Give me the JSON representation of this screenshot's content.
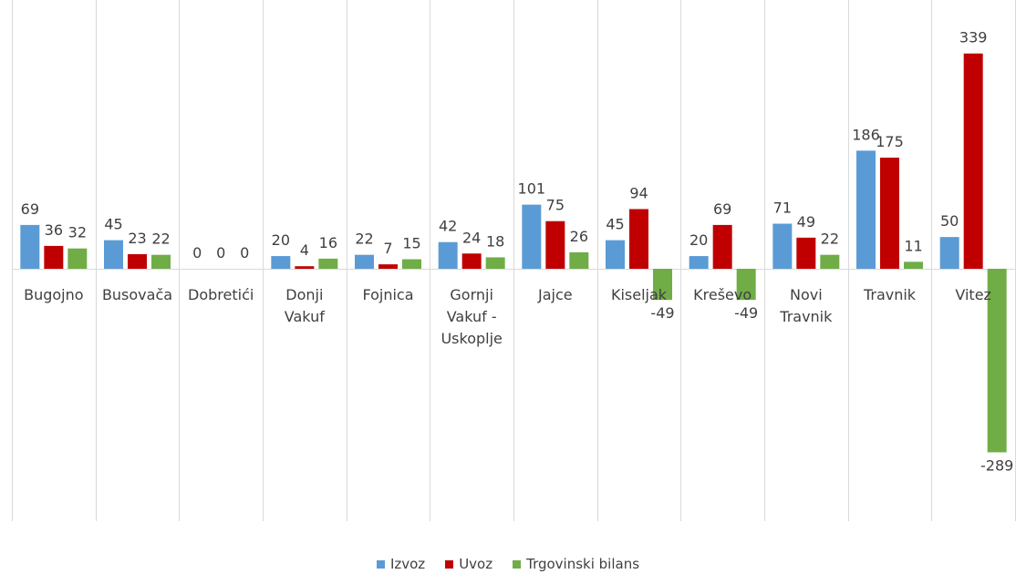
{
  "chart_data": {
    "type": "bar",
    "categories": [
      [
        "Bugojno"
      ],
      [
        "Busovača"
      ],
      [
        "Dobretići"
      ],
      [
        "Donji",
        "Vakuf"
      ],
      [
        "Fojnica"
      ],
      [
        "Gornji",
        "Vakuf -",
        "Uskoplje"
      ],
      [
        "Jajce"
      ],
      [
        "Kiseljak"
      ],
      [
        "Kreševo"
      ],
      [
        "Novi",
        "Travnik"
      ],
      [
        "Travnik"
      ],
      [
        "Vitez"
      ]
    ],
    "series": [
      {
        "name": "Izvoz",
        "color": "#5B9BD5",
        "values": [
          69,
          45,
          0,
          20,
          22,
          42,
          101,
          45,
          20,
          71,
          186,
          50
        ]
      },
      {
        "name": "Uvoz",
        "color": "#C00000",
        "values": [
          36,
          23,
          0,
          4,
          7,
          24,
          75,
          94,
          69,
          49,
          175,
          339
        ]
      },
      {
        "name": "Trgovinski bilans",
        "color": "#70AD47",
        "values": [
          32,
          22,
          0,
          16,
          15,
          18,
          26,
          -49,
          -49,
          22,
          11,
          -289
        ]
      }
    ],
    "data_labels": true,
    "grid": "vertical category separators",
    "legend_position": "bottom",
    "title": "",
    "xlabel": "",
    "ylabel": ""
  }
}
